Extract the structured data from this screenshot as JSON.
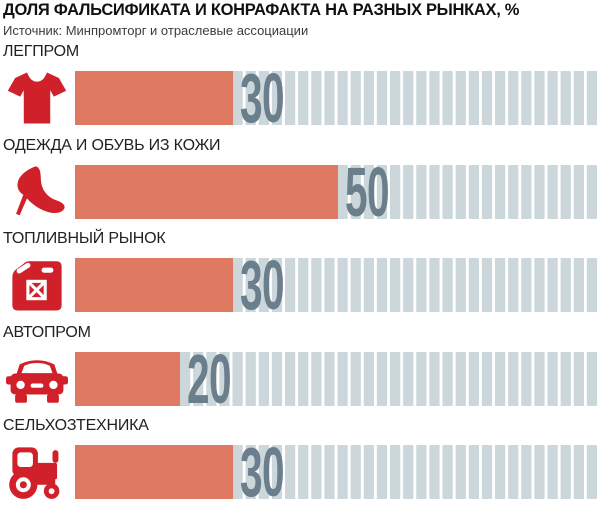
{
  "title": "ДОЛЯ ФАЛЬСИФИКАТА И КОНРАФАКТА НА РАЗНЫХ РЫНКАХ, %",
  "source": "Источник: Минпромторг и отраслевые ассоциации",
  "colors": {
    "background": "#FFFFFF",
    "bar": "#DF7961",
    "stripe": "#CBD7DB",
    "value_text": "#6B7E8C",
    "icon_red": "#D0202A",
    "title_text": "#111111",
    "label_text": "#222222",
    "source_text": "#3C3C3C"
  },
  "chart_data": {
    "type": "bar",
    "orientation": "horizontal",
    "unit": "%",
    "xlim": [
      0,
      100
    ],
    "grid": "striped-track-to-100",
    "legend": null,
    "title": "ДОЛЯ ФАЛЬСИФИКАТА И КОНРАФАКТА НА РАЗНЫХ РЫНКАХ, %",
    "source": "Источник: Минпромторг и отраслевые ассоциации",
    "categories": [
      "ЛЕГПРОМ",
      "ОДЕЖДА И ОБУВЬ ИЗ КОЖИ",
      "ТОПЛИВНЫЙ РЫНОК",
      "АВТОПРОМ",
      "СЕЛЬХОЗТЕХНИКА"
    ],
    "values": [
      30,
      50,
      30,
      20,
      30
    ],
    "value_labels": [
      "30",
      "50",
      "30",
      "20",
      "30"
    ],
    "icons": [
      "tshirt-icon",
      "high-heel-boot-icon",
      "jerry-can-icon",
      "car-front-icon",
      "tractor-icon"
    ]
  }
}
